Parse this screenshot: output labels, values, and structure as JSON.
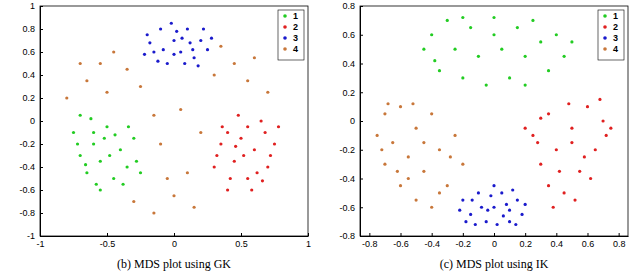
{
  "chart_data": [
    {
      "type": "scatter",
      "title": "(b) MDS plot using GK",
      "xlim": [
        -1,
        1
      ],
      "xticks": [
        -1,
        -0.5,
        0,
        0.5,
        1
      ],
      "ylim": [
        -1,
        1
      ],
      "yticks": [
        -1,
        -0.8,
        -0.6,
        -0.4,
        -0.2,
        0,
        0.2,
        0.4,
        0.6,
        0.8,
        1
      ],
      "legend": "upper right",
      "marker": "dot",
      "series": [
        {
          "name": "1",
          "color": "#22cc22",
          "x": [
            -0.75,
            -0.7,
            -0.65,
            -0.6,
            -0.55,
            -0.5,
            -0.45,
            -0.4,
            -0.35,
            -0.3,
            -0.62,
            -0.72,
            -0.58,
            -0.48,
            -0.38,
            -0.28,
            -0.52,
            -0.66,
            -0.44,
            -0.34,
            -0.55,
            -0.25,
            -0.7,
            -0.6
          ],
          "values": [
            -0.1,
            -0.3,
            -0.45,
            -0.2,
            -0.35,
            -0.05,
            -0.5,
            -0.25,
            -0.4,
            -0.15,
            0.02,
            -0.2,
            -0.55,
            -0.3,
            -0.55,
            -0.35,
            -0.15,
            -0.38,
            -0.12,
            -0.05,
            -0.6,
            -0.45,
            0.05,
            -0.1
          ]
        },
        {
          "name": "2",
          "color": "#e02020",
          "x": [
            0.75,
            0.7,
            0.65,
            0.6,
            0.55,
            0.5,
            0.45,
            0.4,
            0.35,
            0.3,
            0.68,
            0.62,
            0.52,
            0.48,
            0.42,
            0.36,
            0.58,
            0.72,
            0.46,
            0.32,
            0.55,
            0.66,
            0.4,
            0.78
          ],
          "values": [
            -0.2,
            -0.4,
            0.0,
            -0.25,
            -0.5,
            -0.15,
            -0.35,
            -0.6,
            -0.2,
            -0.4,
            -0.1,
            -0.45,
            -0.3,
            0.05,
            -0.5,
            -0.05,
            -0.6,
            -0.3,
            -0.22,
            -0.3,
            -0.05,
            -0.52,
            -0.1,
            -0.05
          ]
        },
        {
          "name": "3",
          "color": "#1a1acc",
          "x": [
            -0.2,
            -0.15,
            -0.1,
            -0.05,
            0,
            0.05,
            0.1,
            0.15,
            0.2,
            0.25,
            -0.18,
            -0.08,
            0.02,
            0.08,
            0.12,
            0.22,
            -0.12,
            0.0,
            0.18,
            -0.22,
            0.28,
            0.06,
            -0.02,
            0.14
          ],
          "values": [
            0.75,
            0.6,
            0.8,
            0.5,
            0.7,
            0.6,
            0.8,
            0.55,
            0.7,
            0.62,
            0.68,
            0.62,
            0.78,
            0.5,
            0.68,
            0.8,
            0.52,
            0.58,
            0.48,
            0.58,
            0.72,
            0.72,
            0.85,
            0.62
          ]
        },
        {
          "name": "4",
          "color": "#c8773a",
          "x": [
            -0.65,
            -0.55,
            -0.45,
            -0.35,
            -0.7,
            -0.5,
            -0.25,
            0.35,
            0.45,
            0.55,
            0.6,
            0.3,
            0.7,
            -0.3,
            -0.15,
            0.0,
            0.15,
            -0.05,
            0.1,
            -0.1,
            0.05,
            -0.15,
            0.2,
            -0.8
          ],
          "values": [
            0.35,
            0.5,
            0.6,
            0.45,
            0.5,
            0.25,
            0.3,
            0.65,
            0.5,
            0.35,
            0.55,
            0.4,
            0.25,
            -0.7,
            -0.8,
            -0.65,
            -0.75,
            -0.5,
            -0.45,
            -0.2,
            0.1,
            0.05,
            -0.1,
            0.2
          ]
        }
      ]
    },
    {
      "type": "scatter",
      "title": "(c) MDS plot using IK",
      "xlim": [
        -0.86,
        0.86
      ],
      "xticks": [
        -0.8,
        -0.6,
        -0.4,
        -0.2,
        0,
        0.2,
        0.4,
        0.6,
        0.8
      ],
      "ylim": [
        -0.8,
        0.8
      ],
      "yticks": [
        -0.8,
        -0.6,
        -0.4,
        -0.2,
        0,
        0.2,
        0.4,
        0.6,
        0.8
      ],
      "legend": "upper right",
      "marker": "dot",
      "series": [
        {
          "name": "1",
          "color": "#22cc22",
          "x": [
            -0.45,
            -0.4,
            -0.35,
            -0.3,
            -0.25,
            -0.2,
            -0.15,
            -0.1,
            -0.05,
            0,
            0.05,
            0.1,
            0.15,
            0.2,
            0.25,
            0.3,
            0.35,
            0.4,
            0.45,
            0.5,
            -0.38,
            0.0,
            0.2,
            -0.2
          ],
          "values": [
            0.5,
            0.6,
            0.35,
            0.7,
            0.5,
            0.3,
            0.65,
            0.45,
            0.25,
            0.72,
            0.5,
            0.3,
            0.65,
            0.45,
            0.7,
            0.55,
            0.35,
            0.6,
            0.45,
            0.55,
            0.42,
            0.6,
            0.25,
            0.72
          ]
        },
        {
          "name": "2",
          "color": "#e02020",
          "x": [
            0.7,
            0.65,
            0.6,
            0.55,
            0.5,
            0.45,
            0.4,
            0.35,
            0.3,
            0.25,
            0.72,
            0.62,
            0.52,
            0.48,
            0.42,
            0.35,
            0.28,
            0.2,
            0.58,
            0.68,
            0.5,
            0.38,
            0.75,
            0.3
          ],
          "values": [
            0.0,
            -0.2,
            0.1,
            -0.35,
            -0.05,
            -0.5,
            -0.2,
            0.05,
            -0.3,
            -0.1,
            -0.1,
            -0.4,
            -0.55,
            0.12,
            -0.35,
            -0.45,
            -0.15,
            -0.05,
            -0.25,
            0.15,
            -0.15,
            -0.6,
            -0.05,
            0.02
          ]
        },
        {
          "name": "3",
          "color": "#1a1acc",
          "x": [
            -0.2,
            -0.15,
            -0.1,
            -0.05,
            0,
            0.05,
            0.1,
            0.15,
            0.18,
            -0.18,
            -0.08,
            0.02,
            0.08,
            0.12,
            -0.12,
            -0.02,
            0.06,
            -0.22,
            0.14,
            -0.04,
            0.0,
            0.2,
            -0.14,
            0.1
          ],
          "values": [
            -0.55,
            -0.65,
            -0.5,
            -0.7,
            -0.6,
            -0.5,
            -0.7,
            -0.55,
            -0.65,
            -0.7,
            -0.6,
            -0.72,
            -0.58,
            -0.48,
            -0.72,
            -0.52,
            -0.66,
            -0.62,
            -0.72,
            -0.62,
            -0.45,
            -0.58,
            -0.55,
            -0.62
          ]
        },
        {
          "name": "4",
          "color": "#c8773a",
          "x": [
            -0.75,
            -0.7,
            -0.7,
            -0.65,
            -0.6,
            -0.6,
            -0.55,
            -0.5,
            -0.5,
            -0.45,
            -0.4,
            -0.4,
            -0.35,
            -0.3,
            -0.25,
            -0.2,
            -0.72,
            -0.62,
            -0.52,
            -0.45,
            -0.35,
            -0.28,
            -0.55,
            -0.68
          ],
          "values": [
            -0.1,
            0.05,
            -0.3,
            -0.15,
            0.1,
            -0.45,
            -0.25,
            -0.05,
            -0.55,
            -0.35,
            0.05,
            -0.6,
            -0.2,
            -0.45,
            -0.1,
            -0.3,
            -0.2,
            -0.35,
            0.12,
            -0.15,
            -0.5,
            -0.25,
            -0.4,
            0.12
          ]
        }
      ]
    }
  ]
}
